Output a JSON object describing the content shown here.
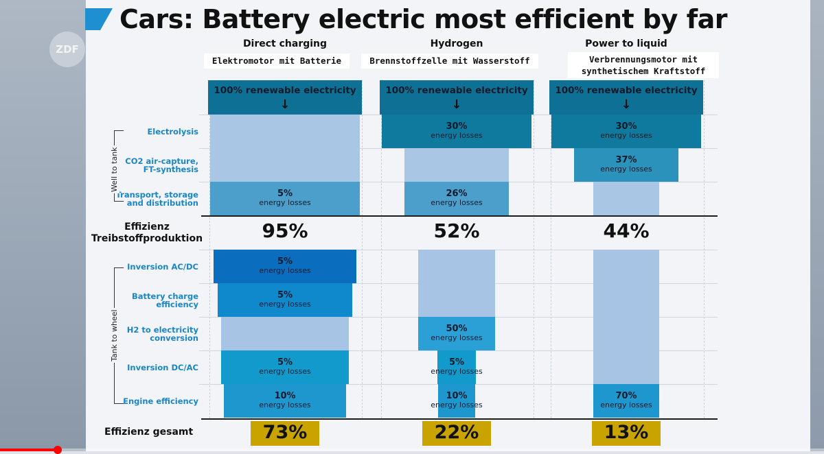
{
  "title": "Cars: Battery electric most efficient by far",
  "watermark": "ZDF",
  "colors": {
    "accent": "#1e8fd0",
    "renewable": "#0f7095",
    "total_box": "#c9a300"
  },
  "chart_data": {
    "type": "table",
    "columns": [
      {
        "name": "Direct charging",
        "subtitle": "Elektromotor mit Batterie",
        "source": "100% renewable electricity",
        "stages": [
          {
            "stage": "Electrolysis",
            "loss": null
          },
          {
            "stage": "CO2 air-capture, FT-synthesis",
            "loss": null
          },
          {
            "stage": "Transport, storage and distribution",
            "loss": "5%"
          },
          {
            "stage": "Inversion AC/DC",
            "loss": "5%"
          },
          {
            "stage": "Battery charge efficiency",
            "loss": "5%"
          },
          {
            "stage": "H2 to electricity conversion",
            "loss": null
          },
          {
            "stage": "Inversion DC/AC",
            "loss": "5%"
          },
          {
            "stage": "Engine efficiency",
            "loss": "10%"
          }
        ],
        "fuel_production_efficiency": "95%",
        "total_efficiency": "73%"
      },
      {
        "name": "Hydrogen",
        "subtitle": "Brennstoffzelle mit Wasserstoff",
        "source": "100% renewable electricity",
        "stages": [
          {
            "stage": "Electrolysis",
            "loss": "30%"
          },
          {
            "stage": "CO2 air-capture, FT-synthesis",
            "loss": null
          },
          {
            "stage": "Transport, storage and distribution",
            "loss": "26%"
          },
          {
            "stage": "Inversion AC/DC",
            "loss": null
          },
          {
            "stage": "Battery charge efficiency",
            "loss": null
          },
          {
            "stage": "H2 to electricity conversion",
            "loss": "50%"
          },
          {
            "stage": "Inversion DC/AC",
            "loss": "5%"
          },
          {
            "stage": "Engine efficiency",
            "loss": "10%"
          }
        ],
        "fuel_production_efficiency": "52%",
        "total_efficiency": "22%"
      },
      {
        "name": "Power to liquid",
        "subtitle": "Verbrennungsmotor mit synthetischem Kraftstoff",
        "source": "100% renewable electricity",
        "stages": [
          {
            "stage": "Electrolysis",
            "loss": "30%"
          },
          {
            "stage": "CO2 air-capture, FT-synthesis",
            "loss": "37%"
          },
          {
            "stage": "Transport, storage and distribution",
            "loss": null
          },
          {
            "stage": "Inversion AC/DC",
            "loss": null
          },
          {
            "stage": "Battery charge efficiency",
            "loss": null
          },
          {
            "stage": "H2 to electricity conversion",
            "loss": null
          },
          {
            "stage": "Inversion DC/AC",
            "loss": null
          },
          {
            "stage": "Engine efficiency",
            "loss": "70%"
          }
        ],
        "fuel_production_efficiency": "44%",
        "total_efficiency": "13%"
      }
    ],
    "stage_labels": [
      "Electrolysis",
      "CO2 air-capture, FT-synthesis",
      "Transport, storage and distribution",
      "Inversion AC/DC",
      "Battery charge efficiency",
      "H2 to electricity conversion",
      "Inversion DC/AC",
      "Engine efficiency"
    ],
    "groups": [
      "Well to tank",
      "Tank to wheel"
    ],
    "loss_suffix": "energy losses",
    "fuel_efficiency_label": "Effizienz Treibstoffproduktion",
    "total_label": "Effizienz gesamt"
  },
  "video": {
    "progress_fraction": 0.07
  }
}
